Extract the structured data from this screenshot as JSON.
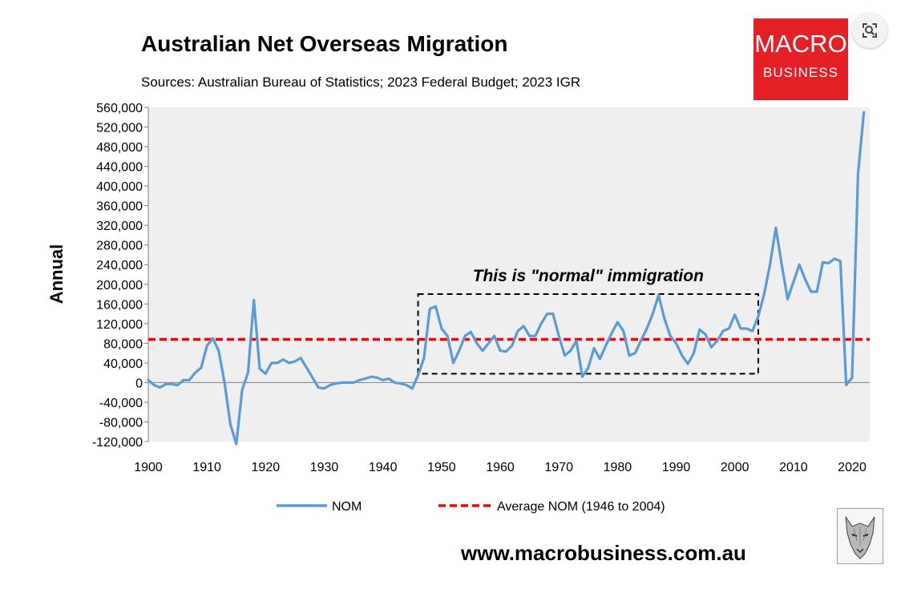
{
  "chart_data": {
    "type": "line",
    "title": "Australian Net Overseas Migration",
    "subtitle": "Sources: Australian Bureau of Statistics; 2023 Federal Budget; 2023 IGR",
    "ylabel": "Annual",
    "xlim": [
      1900,
      2023
    ],
    "ylim": [
      -120000,
      560000
    ],
    "yticks": [
      -120000,
      -80000,
      -40000,
      0,
      40000,
      80000,
      120000,
      160000,
      200000,
      240000,
      280000,
      320000,
      360000,
      400000,
      440000,
      480000,
      520000,
      560000
    ],
    "ytick_labels": [
      "-120,000",
      "-80,000",
      "-40,000",
      "0",
      "40,000",
      "80,000",
      "120,000",
      "160,000",
      "200,000",
      "240,000",
      "280,000",
      "320,000",
      "360,000",
      "400,000",
      "440,000",
      "480,000",
      "520,000",
      "560,000"
    ],
    "xticks": [
      1900,
      1910,
      1920,
      1930,
      1940,
      1950,
      1960,
      1970,
      1980,
      1990,
      2000,
      2010,
      2020
    ],
    "xtick_labels": [
      "1900",
      "1910",
      "1920",
      "1930",
      "1940",
      "1950",
      "1960",
      "1970",
      "1980",
      "1990",
      "2000",
      "2010",
      "2020"
    ],
    "grid": false,
    "legend_position": "bottom",
    "series": [
      {
        "name": "NOM",
        "color": "#5b9bd5",
        "x": [
          1900,
          1901,
          1902,
          1903,
          1904,
          1905,
          1906,
          1907,
          1908,
          1909,
          1910,
          1911,
          1912,
          1913,
          1914,
          1915,
          1916,
          1917,
          1918,
          1919,
          1920,
          1921,
          1922,
          1923,
          1924,
          1925,
          1926,
          1927,
          1928,
          1929,
          1930,
          1931,
          1932,
          1933,
          1934,
          1935,
          1936,
          1937,
          1938,
          1939,
          1940,
          1941,
          1942,
          1943,
          1944,
          1945,
          1946,
          1947,
          1948,
          1949,
          1950,
          1951,
          1952,
          1953,
          1954,
          1955,
          1956,
          1957,
          1958,
          1959,
          1960,
          1961,
          1962,
          1963,
          1964,
          1965,
          1966,
          1967,
          1968,
          1969,
          1970,
          1971,
          1972,
          1973,
          1974,
          1975,
          1976,
          1977,
          1978,
          1979,
          1980,
          1981,
          1982,
          1983,
          1984,
          1985,
          1986,
          1987,
          1988,
          1989,
          1990,
          1991,
          1992,
          1993,
          1994,
          1995,
          1996,
          1997,
          1998,
          1999,
          2000,
          2001,
          2002,
          2003,
          2004,
          2005,
          2006,
          2007,
          2008,
          2009,
          2010,
          2011,
          2012,
          2013,
          2014,
          2015,
          2016,
          2017,
          2018,
          2019,
          2020,
          2021,
          2022
        ],
        "values": [
          5000,
          -5000,
          -10000,
          -3000,
          -3000,
          -5000,
          5000,
          5000,
          20000,
          30000,
          75000,
          90000,
          65000,
          0,
          -85000,
          -125000,
          -15000,
          20000,
          168000,
          28000,
          18000,
          40000,
          40000,
          47000,
          40000,
          43000,
          50000,
          30000,
          10000,
          -10000,
          -12000,
          -5000,
          -2000,
          0,
          0,
          0,
          5000,
          8000,
          12000,
          10000,
          5000,
          8000,
          0,
          -2000,
          -5000,
          -12000,
          15000,
          50000,
          150000,
          155000,
          110000,
          95000,
          40000,
          65000,
          95000,
          103000,
          80000,
          65000,
          80000,
          95000,
          65000,
          63000,
          75000,
          105000,
          115000,
          95000,
          95000,
          120000,
          140000,
          140000,
          95000,
          55000,
          65000,
          85000,
          12000,
          30000,
          70000,
          48000,
          75000,
          100000,
          123000,
          105000,
          55000,
          60000,
          85000,
          110000,
          140000,
          178000,
          130000,
          95000,
          80000,
          55000,
          38000,
          60000,
          108000,
          98000,
          72000,
          85000,
          105000,
          110000,
          138000,
          110000,
          110000,
          105000,
          135000,
          180000,
          240000,
          315000,
          240000,
          170000,
          205000,
          240000,
          210000,
          185000,
          185000,
          245000,
          243000,
          252000,
          247000,
          -5000,
          10000,
          425000,
          550000
        ]
      },
      {
        "name": "Average NOM (1946 to 2004)",
        "color": "#ff0000",
        "dashed": true,
        "x": [
          1900,
          2023
        ],
        "values": [
          88000,
          88000
        ]
      }
    ],
    "annotations": [
      {
        "text": "This is \"normal\" immigration",
        "x_range": [
          1946,
          2004
        ],
        "y_range": [
          18000,
          180000
        ]
      }
    ]
  },
  "logo": {
    "line1": "MACRO",
    "line2": "BUSINESS"
  },
  "footer": {
    "website": "www.macrobusiness.com.au"
  },
  "icons": {
    "lens": "image-search-icon",
    "wolf": "wolf-logo-icon"
  }
}
